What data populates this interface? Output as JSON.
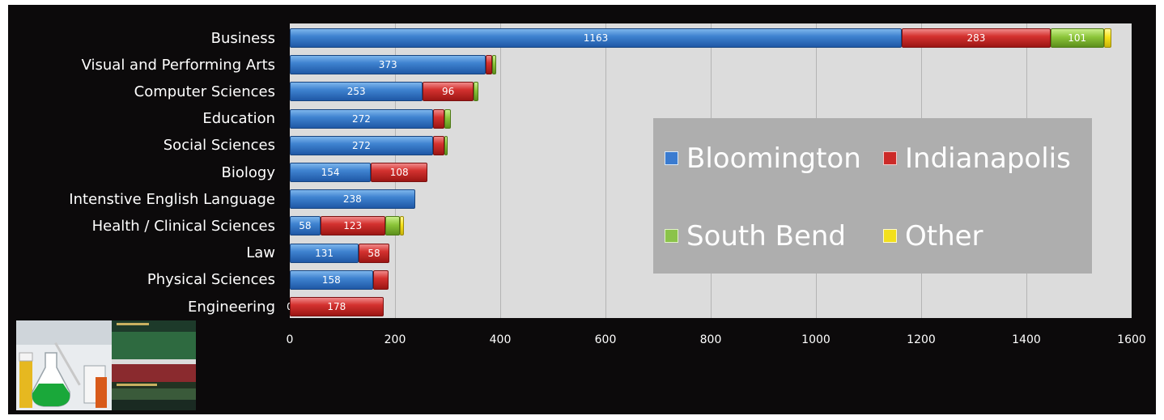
{
  "chart_data": {
    "type": "bar",
    "orientation": "horizontal",
    "stacked": true,
    "categories": [
      "Business",
      "Visual and Performing Arts",
      "Computer Sciences",
      "Education",
      "Social Sciences",
      "Biology",
      "Intenstive English Language",
      "Health / Clinical Sciences",
      "Law",
      "Physical Sciences",
      "Engineering"
    ],
    "series": [
      {
        "name": "Bloomington",
        "color": "#3a7bd0",
        "values": [
          1163,
          373,
          253,
          272,
          272,
          154,
          238,
          58,
          131,
          158,
          0
        ]
      },
      {
        "name": "Indianapolis",
        "color": "#cc2a28",
        "values": [
          283,
          12,
          96,
          22,
          22,
          108,
          0,
          123,
          58,
          30,
          178
        ]
      },
      {
        "name": "South Bend",
        "color": "#8bc34a",
        "values": [
          101,
          8,
          10,
          12,
          6,
          0,
          0,
          28,
          0,
          0,
          0
        ]
      },
      {
        "name": "Other",
        "color": "#f2e01c",
        "values": [
          14,
          0,
          0,
          0,
          0,
          0,
          0,
          8,
          0,
          0,
          0
        ]
      }
    ],
    "labels": [
      [
        "1163",
        "283",
        "101",
        ""
      ],
      [
        "373",
        "",
        "",
        ""
      ],
      [
        "253",
        "96",
        "",
        ""
      ],
      [
        "272",
        "",
        "",
        ""
      ],
      [
        "272",
        "",
        "",
        ""
      ],
      [
        "154",
        "108",
        "",
        ""
      ],
      [
        "238",
        "",
        "",
        ""
      ],
      [
        "58",
        "123",
        "",
        ""
      ],
      [
        "131",
        "58",
        "",
        ""
      ],
      [
        "158",
        "",
        "",
        ""
      ],
      [
        "0",
        "178",
        "",
        ""
      ]
    ],
    "xlim": [
      0,
      1600
    ],
    "xticks": [
      "0",
      "200",
      "400",
      "600",
      "800",
      "1000",
      "1200",
      "1400",
      "1600"
    ],
    "xgrid": true,
    "legend_position": "right",
    "title": "",
    "xlabel": "",
    "ylabel": ""
  },
  "legend": {
    "bloomington": "Bloomington",
    "indianapolis": "Indianapolis",
    "south_bend": "South Bend",
    "other": "Other"
  },
  "thumbnail": {
    "icon": "science-books-photo-icon"
  }
}
